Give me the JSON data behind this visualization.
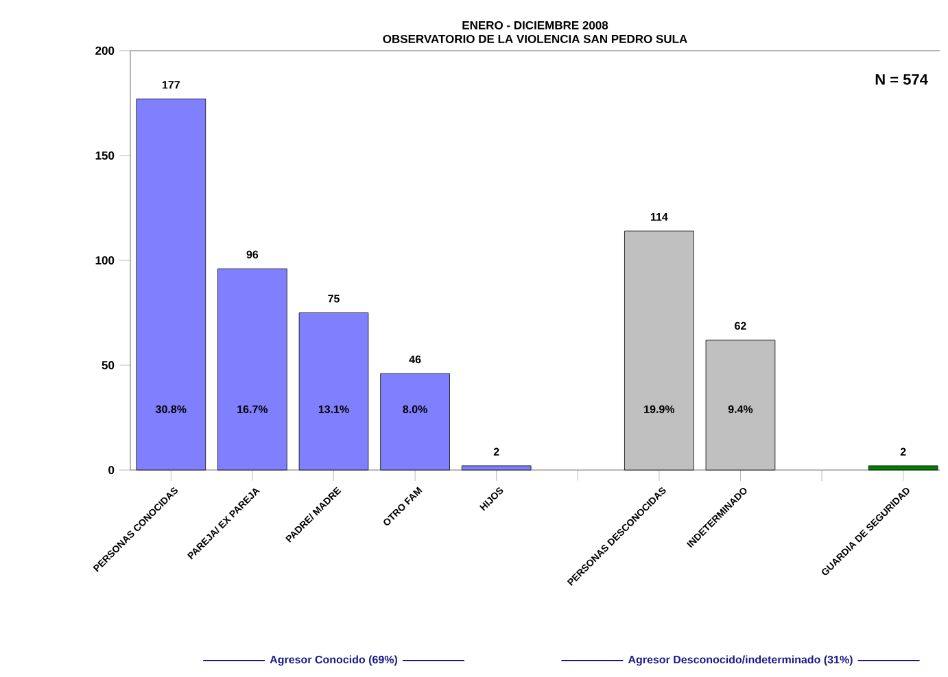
{
  "chart_data": {
    "type": "bar",
    "title": "ENERO - DICIEMBRE 2008",
    "subtitle": "OBSERVATORIO DE LA VIOLENCIA SAN PEDRO SULA",
    "categories": [
      "PERSONAS CONOCIDAS",
      "PAREJA/ EX PAREJA",
      "PADRE/ MADRE",
      "OTRO FAM",
      "HIJOS",
      null,
      "PERSONAS DESCONOCIDAS",
      "INDETERMINADO",
      null,
      "GUARDIA DE SEGURIDAD"
    ],
    "values": [
      177,
      96,
      75,
      46,
      2,
      null,
      114,
      62,
      null,
      2
    ],
    "colors": [
      "#8080ff",
      "#8080ff",
      "#8080ff",
      "#8080ff",
      "#8080ff",
      null,
      "#c0c0c0",
      "#c0c0c0",
      null,
      "#008000"
    ],
    "ylim": [
      0,
      200
    ],
    "yticks": [
      0,
      50,
      100,
      150,
      200
    ],
    "data_labels": true,
    "annotations": [
      "N = 574",
      "30.8%",
      "16.7%",
      "13.1%",
      "8.0%",
      "19.9%",
      "9.4%",
      "Agresor Conocido (69%)",
      "Agresor Desconocido/indeterminado (31%)"
    ]
  }
}
